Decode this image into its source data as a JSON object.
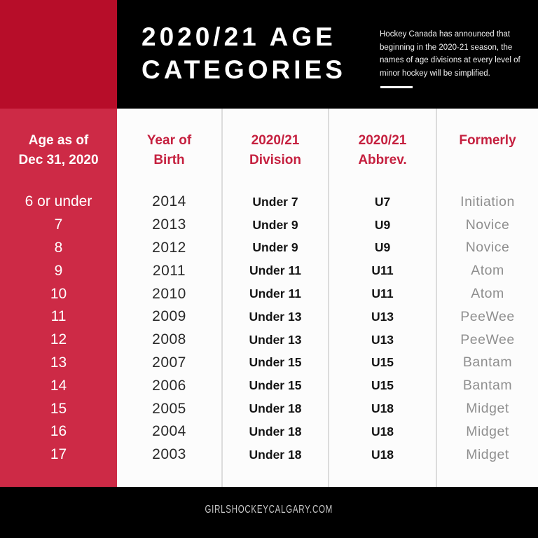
{
  "colors": {
    "header_bg": "#000000",
    "header_red_block": "#b70d29",
    "age_column_red": "#cd2a46",
    "table_bg": "#fcfcfc",
    "divider_gray": "#dcdcdc",
    "accent_red_text": "#c5203f",
    "dark_text": "#2a2a2a",
    "bold_text": "#141414",
    "gray_text": "#8f8f8f",
    "footer_text": "#c9c9c9"
  },
  "header": {
    "title_line1": "2020/21 AGE",
    "title_line2": "CATEGORIES",
    "note_lines": [
      "Hockey Canada has announced that",
      "beginning in the 2020-21 season, the",
      "names of age divisions at every level of",
      "minor hockey will be simplified."
    ]
  },
  "table_headers": {
    "age_line1": "Age as of",
    "age_line2": "Dec 31, 2020",
    "year_line1": "Year of",
    "year_line2": "Birth",
    "division_line1": "2020/21",
    "division_line2": "Division",
    "abbrev_line1": "2020/21",
    "abbrev_line2": "Abbrev.",
    "formerly_line1": "Formerly"
  },
  "chart_data": {
    "type": "table",
    "title": "2020/21 AGE CATEGORIES",
    "columns": [
      "Age as of Dec 31, 2020",
      "Year of Birth",
      "2020/21 Division",
      "2020/21 Abbrev.",
      "Formerly"
    ],
    "rows": [
      [
        "6 or under",
        "2014",
        "Under 7",
        "U7",
        "Initiation"
      ],
      [
        "7",
        "2013",
        "Under 9",
        "U9",
        "Novice"
      ],
      [
        "8",
        "2012",
        "Under 9",
        "U9",
        "Novice"
      ],
      [
        "9",
        "2011",
        "Under 11",
        "U11",
        "Atom"
      ],
      [
        "10",
        "2010",
        "Under 11",
        "U11",
        "Atom"
      ],
      [
        "11",
        "2009",
        "Under 13",
        "U13",
        "PeeWee"
      ],
      [
        "12",
        "2008",
        "Under 13",
        "U13",
        "PeeWee"
      ],
      [
        "13",
        "2007",
        "Under 15",
        "U15",
        "Bantam"
      ],
      [
        "14",
        "2006",
        "Under 15",
        "U15",
        "Bantam"
      ],
      [
        "15",
        "2005",
        "Under 18",
        "U18",
        "Midget"
      ],
      [
        "16",
        "2004",
        "Under 18",
        "U18",
        "Midget"
      ],
      [
        "17",
        "2003",
        "Under 18",
        "U18",
        "Midget"
      ]
    ]
  },
  "footer": {
    "site": "GIRLSHOCKEYCALGARY.COM"
  }
}
